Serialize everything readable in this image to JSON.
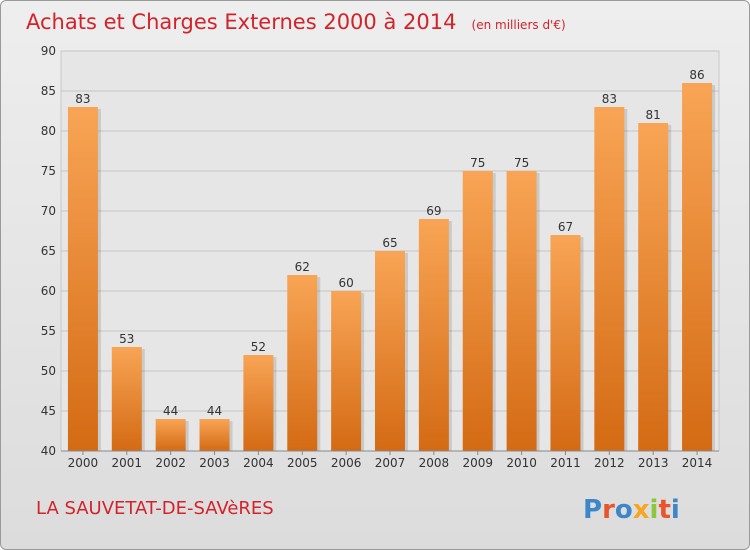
{
  "chart_data": {
    "type": "bar",
    "title": "Achats et Charges Externes 2000 à 2014",
    "subtitle": "(en milliers d'€)",
    "categories": [
      "2000",
      "2001",
      "2002",
      "2003",
      "2004",
      "2005",
      "2006",
      "2007",
      "2008",
      "2009",
      "2010",
      "2011",
      "2012",
      "2013",
      "2014"
    ],
    "values": [
      83,
      53,
      44,
      44,
      52,
      62,
      60,
      65,
      69,
      75,
      75,
      67,
      83,
      81,
      86
    ],
    "ylim": [
      40,
      90
    ],
    "yticks": [
      40,
      45,
      50,
      55,
      60,
      65,
      70,
      75,
      80,
      85,
      90
    ],
    "grid": true,
    "bar_color": "#f0892f"
  },
  "footer": {
    "location": "LA SAUVETAT-DE-SAVèRES",
    "brand": "Proxiti"
  },
  "colors": {
    "title": "#d2232a",
    "bar_light": "#f8a555",
    "bar_dark": "#d46a14",
    "logo_letters": [
      "#3d87c8",
      "#e8552c",
      "#3d87c8",
      "#f5a623",
      "#8cc63f",
      "#e8552c",
      "#3d87c8"
    ]
  }
}
